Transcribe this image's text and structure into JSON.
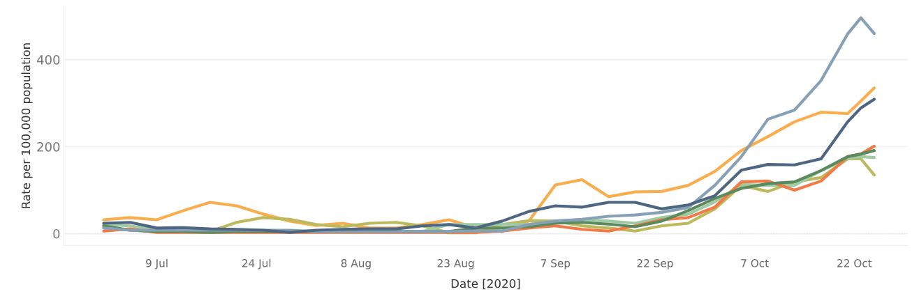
{
  "chart_data": {
    "type": "line",
    "xlabel": "Date [2020]",
    "ylabel": "Rate per 100,000 population",
    "x": [
      "2020-07-01",
      "2020-07-05",
      "2020-07-09",
      "2020-07-13",
      "2020-07-17",
      "2020-07-21",
      "2020-07-25",
      "2020-07-29",
      "2020-08-02",
      "2020-08-06",
      "2020-08-10",
      "2020-08-14",
      "2020-08-18",
      "2020-08-22",
      "2020-08-26",
      "2020-08-30",
      "2020-09-03",
      "2020-09-07",
      "2020-09-11",
      "2020-09-15",
      "2020-09-19",
      "2020-09-23",
      "2020-09-27",
      "2020-10-01",
      "2020-10-05",
      "2020-10-09",
      "2020-10-13",
      "2020-10-17",
      "2020-10-21",
      "2020-10-23",
      "2020-10-25"
    ],
    "series": [
      {
        "color": "#f9ad4c",
        "values": [
          32,
          37,
          32,
          53,
          72,
          64,
          45,
          29,
          19,
          24,
          13,
          13,
          21,
          32,
          13,
          5,
          29,
          112,
          124,
          85,
          96,
          97,
          111,
          143,
          191,
          223,
          257,
          279,
          276,
          305,
          335
        ]
      },
      {
        "color": "#bcba5c",
        "values": [
          16,
          8,
          5,
          5,
          5,
          26,
          37,
          33,
          21,
          16,
          24,
          26,
          18,
          2,
          2,
          21,
          30,
          29,
          18,
          13,
          6,
          18,
          24,
          57,
          111,
          97,
          119,
          129,
          172,
          172,
          135
        ]
      },
      {
        "color": "#9fcba4",
        "values": [
          21,
          18,
          8,
          5,
          5,
          5,
          5,
          5,
          5,
          5,
          5,
          5,
          5,
          21,
          21,
          21,
          21,
          29,
          32,
          29,
          24,
          37,
          45,
          73,
          113,
          111,
          111,
          145,
          172,
          177,
          175
        ]
      },
      {
        "color": "#f47a45",
        "values": [
          6,
          11,
          3,
          3,
          3,
          3,
          3,
          3,
          3,
          3,
          3,
          3,
          3,
          3,
          3,
          6,
          13,
          18,
          10,
          6,
          18,
          32,
          37,
          61,
          119,
          121,
          100,
          121,
          177,
          183,
          201
        ]
      },
      {
        "color": "#5b8a5e",
        "values": [
          18,
          8,
          5,
          5,
          3,
          5,
          5,
          5,
          5,
          5,
          5,
          5,
          5,
          5,
          13,
          13,
          16,
          24,
          26,
          22,
          16,
          29,
          53,
          81,
          104,
          115,
          119,
          145,
          177,
          183,
          191
        ]
      },
      {
        "color": "#86a0b5",
        "values": [
          13,
          8,
          8,
          8,
          8,
          8,
          8,
          8,
          5,
          5,
          5,
          5,
          5,
          5,
          6,
          6,
          21,
          29,
          33,
          40,
          43,
          49,
          60,
          111,
          177,
          263,
          284,
          352,
          459,
          496,
          460
        ]
      },
      {
        "color": "#4e6681",
        "values": [
          24,
          26,
          13,
          14,
          11,
          10,
          8,
          3,
          8,
          10,
          11,
          11,
          18,
          21,
          13,
          29,
          51,
          64,
          61,
          72,
          72,
          57,
          66,
          87,
          146,
          159,
          158,
          172,
          257,
          289,
          309
        ]
      }
    ],
    "xlim": [
      "2020-06-25",
      "2020-10-30"
    ],
    "ylim": [
      -27,
      523
    ],
    "xticks": [
      {
        "value": "2020-07-09",
        "label": "9 Jul"
      },
      {
        "value": "2020-07-24",
        "label": "24 Jul"
      },
      {
        "value": "2020-08-08",
        "label": "8 Aug"
      },
      {
        "value": "2020-08-23",
        "label": "23 Aug"
      },
      {
        "value": "2020-09-07",
        "label": "7 Sep"
      },
      {
        "value": "2020-09-22",
        "label": "22 Sep"
      },
      {
        "value": "2020-10-07",
        "label": "7 Oct"
      },
      {
        "value": "2020-10-22",
        "label": "22 Oct"
      }
    ],
    "yticks": [
      0,
      200,
      400
    ],
    "grid": "y",
    "line_style": "solid",
    "ref_lines": [
      {
        "axis": "y",
        "value": 0,
        "color": "#b0b0b0",
        "line_style": "dotted"
      }
    ]
  }
}
